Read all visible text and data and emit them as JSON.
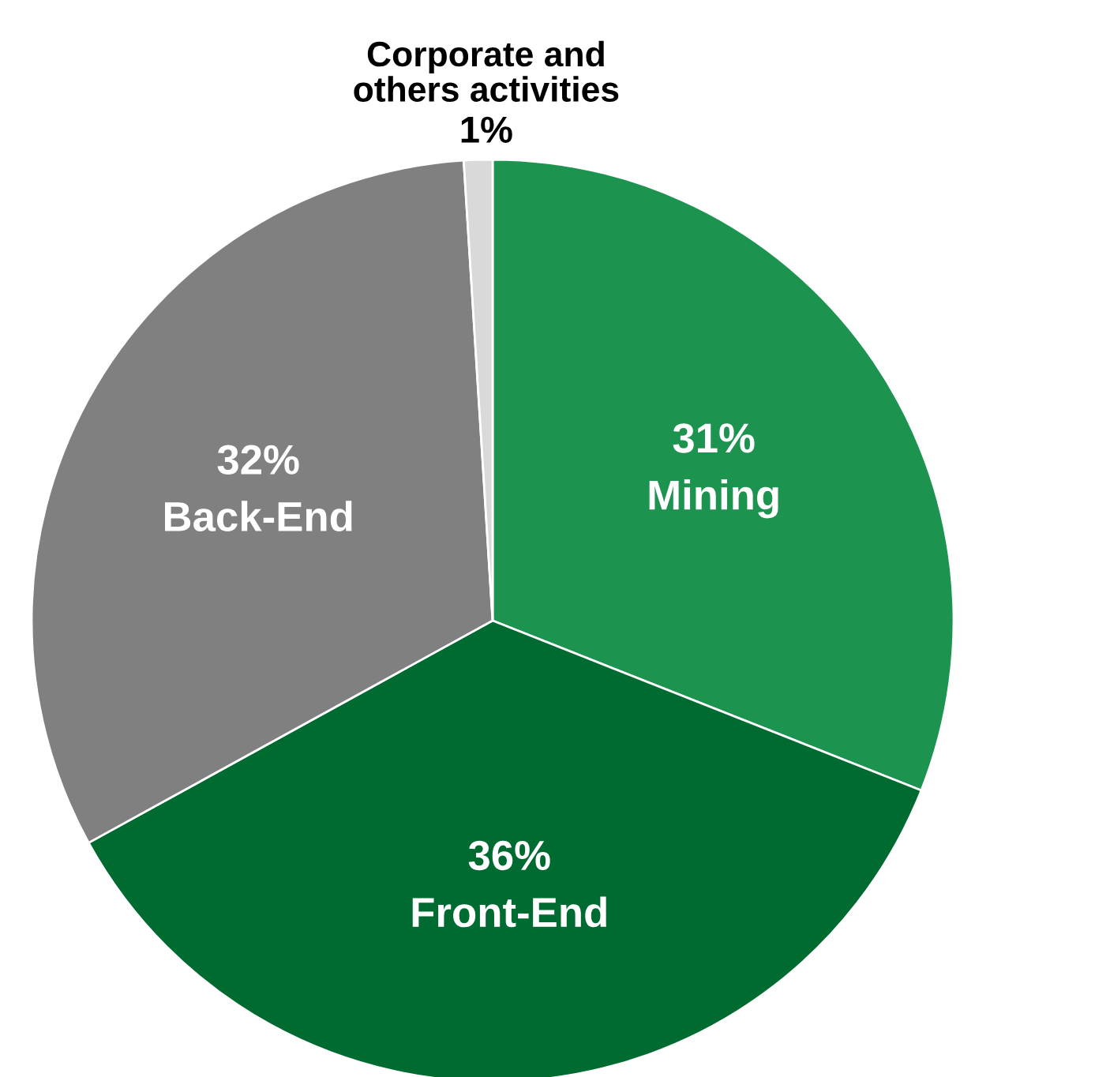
{
  "chart_data": {
    "type": "pie",
    "categories": [
      "Mining",
      "Front-End",
      "Back-End",
      "Corporate and\nothers activities"
    ],
    "values": [
      31,
      36,
      32,
      1
    ],
    "value_labels": [
      "31%",
      "36%",
      "32%",
      "1%"
    ],
    "colors": [
      "#1c9450",
      "#006b30",
      "#808080",
      "#d9d9d9"
    ],
    "legend": false
  }
}
